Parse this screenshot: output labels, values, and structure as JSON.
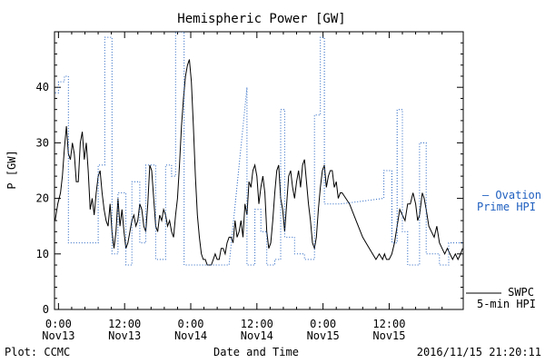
{
  "chart_data": {
    "type": "line",
    "title": "Hemispheric Power [GW]",
    "xlabel": "Date and Time",
    "ylabel": "P [GW]",
    "xlim": [
      -0.6,
      61.2
    ],
    "ylim": [
      0,
      50
    ],
    "yticks": [
      {
        "v": 0,
        "label": "0"
      },
      {
        "v": 10,
        "label": "10"
      },
      {
        "v": 20,
        "label": "20"
      },
      {
        "v": 30,
        "label": "30"
      },
      {
        "v": 40,
        "label": "40"
      }
    ],
    "xticks": [
      {
        "v": 0,
        "line1": "0:00",
        "line2": "Nov13"
      },
      {
        "v": 10,
        "line1": "12:00",
        "line2": "Nov13"
      },
      {
        "v": 20,
        "line1": "0:00",
        "line2": "Nov14"
      },
      {
        "v": 30,
        "line1": "12:00",
        "line2": "Nov14"
      },
      {
        "v": 40,
        "line1": "0:00",
        "line2": "Nov15"
      },
      {
        "v": 50,
        "line1": "12:00",
        "line2": "Nov15"
      }
    ],
    "series": [
      {
        "name": "SWPC 5-min HPI",
        "color": "#000000",
        "style": "solid",
        "points": [
          [
            -0.5,
            16
          ],
          [
            -0.1,
            19
          ],
          [
            0.3,
            21
          ],
          [
            0.6,
            24
          ],
          [
            0.9,
            29
          ],
          [
            1.2,
            33
          ],
          [
            1.5,
            28
          ],
          [
            1.8,
            27
          ],
          [
            2.1,
            30
          ],
          [
            2.4,
            28
          ],
          [
            2.7,
            23
          ],
          [
            3.0,
            23
          ],
          [
            3.3,
            30
          ],
          [
            3.6,
            32
          ],
          [
            3.9,
            27
          ],
          [
            4.2,
            30
          ],
          [
            4.5,
            25
          ],
          [
            4.8,
            18
          ],
          [
            5.1,
            20
          ],
          [
            5.4,
            17
          ],
          [
            5.7,
            21
          ],
          [
            6.0,
            24
          ],
          [
            6.3,
            25
          ],
          [
            6.6,
            21
          ],
          [
            6.9,
            18
          ],
          [
            7.2,
            16
          ],
          [
            7.5,
            15
          ],
          [
            7.8,
            19
          ],
          [
            8.1,
            14
          ],
          [
            8.4,
            11
          ],
          [
            8.7,
            14
          ],
          [
            9.0,
            20
          ],
          [
            9.3,
            15
          ],
          [
            9.6,
            18
          ],
          [
            9.9,
            14
          ],
          [
            10.2,
            11
          ],
          [
            10.5,
            12
          ],
          [
            10.8,
            14
          ],
          [
            11.1,
            16
          ],
          [
            11.4,
            17
          ],
          [
            11.7,
            15
          ],
          [
            12.0,
            16
          ],
          [
            12.3,
            19
          ],
          [
            12.6,
            18
          ],
          [
            12.9,
            15
          ],
          [
            13.2,
            14
          ],
          [
            13.5,
            19
          ],
          [
            13.8,
            26
          ],
          [
            14.1,
            25
          ],
          [
            14.4,
            20
          ],
          [
            14.7,
            15
          ],
          [
            15.0,
            14
          ],
          [
            15.3,
            17
          ],
          [
            15.6,
            16
          ],
          [
            15.9,
            18
          ],
          [
            16.2,
            17
          ],
          [
            16.5,
            15
          ],
          [
            16.8,
            16
          ],
          [
            17.1,
            14
          ],
          [
            17.4,
            13
          ],
          [
            17.7,
            17
          ],
          [
            18.0,
            20
          ],
          [
            18.3,
            26
          ],
          [
            18.6,
            33
          ],
          [
            18.9,
            38
          ],
          [
            19.2,
            42
          ],
          [
            19.5,
            44
          ],
          [
            19.8,
            45
          ],
          [
            20.1,
            41
          ],
          [
            20.4,
            33
          ],
          [
            20.7,
            24
          ],
          [
            21.0,
            17
          ],
          [
            21.3,
            13
          ],
          [
            21.6,
            10
          ],
          [
            21.9,
            9
          ],
          [
            22.2,
            9
          ],
          [
            22.5,
            8
          ],
          [
            22.8,
            8
          ],
          [
            23.1,
            8
          ],
          [
            23.4,
            9
          ],
          [
            23.7,
            10
          ],
          [
            24.0,
            9
          ],
          [
            24.3,
            9
          ],
          [
            24.6,
            11
          ],
          [
            24.9,
            11
          ],
          [
            25.2,
            10
          ],
          [
            25.5,
            12
          ],
          [
            25.8,
            13
          ],
          [
            26.1,
            13
          ],
          [
            26.4,
            12
          ],
          [
            26.7,
            16
          ],
          [
            27.0,
            13
          ],
          [
            27.3,
            14
          ],
          [
            27.6,
            16
          ],
          [
            27.9,
            13
          ],
          [
            28.2,
            19
          ],
          [
            28.5,
            17
          ],
          [
            28.8,
            23
          ],
          [
            29.1,
            22
          ],
          [
            29.4,
            25
          ],
          [
            29.7,
            26
          ],
          [
            30.0,
            24
          ],
          [
            30.3,
            19
          ],
          [
            30.6,
            22
          ],
          [
            30.9,
            24
          ],
          [
            31.2,
            21
          ],
          [
            31.5,
            14
          ],
          [
            31.8,
            11
          ],
          [
            32.1,
            12
          ],
          [
            32.4,
            16
          ],
          [
            32.7,
            21
          ],
          [
            33.0,
            25
          ],
          [
            33.3,
            26
          ],
          [
            33.6,
            20
          ],
          [
            33.9,
            18
          ],
          [
            34.2,
            14
          ],
          [
            34.5,
            19
          ],
          [
            34.8,
            24
          ],
          [
            35.1,
            25
          ],
          [
            35.4,
            22
          ],
          [
            35.7,
            20
          ],
          [
            36.0,
            23
          ],
          [
            36.3,
            25
          ],
          [
            36.6,
            22
          ],
          [
            36.9,
            26
          ],
          [
            37.2,
            27
          ],
          [
            37.5,
            23
          ],
          [
            37.8,
            19
          ],
          [
            38.1,
            16
          ],
          [
            38.4,
            12
          ],
          [
            38.7,
            11
          ],
          [
            39.0,
            13
          ],
          [
            39.3,
            18
          ],
          [
            39.6,
            22
          ],
          [
            39.9,
            25
          ],
          [
            40.2,
            26
          ],
          [
            40.5,
            22
          ],
          [
            40.8,
            24
          ],
          [
            41.1,
            25
          ],
          [
            41.4,
            25
          ],
          [
            41.7,
            22
          ],
          [
            42.0,
            23
          ],
          [
            42.3,
            20
          ],
          [
            42.6,
            21
          ],
          [
            42.9,
            21
          ],
          [
            44.0,
            19
          ],
          [
            45.0,
            16
          ],
          [
            46.0,
            13
          ],
          [
            47.0,
            11
          ],
          [
            47.5,
            10
          ],
          [
            48.0,
            9
          ],
          [
            48.5,
            10
          ],
          [
            49.0,
            9
          ],
          [
            49.3,
            10
          ],
          [
            49.6,
            9
          ],
          [
            50.0,
            9
          ],
          [
            50.4,
            10
          ],
          [
            50.8,
            12
          ],
          [
            51.2,
            15
          ],
          [
            51.6,
            18
          ],
          [
            52.0,
            17
          ],
          [
            52.4,
            16
          ],
          [
            52.8,
            19
          ],
          [
            53.2,
            19
          ],
          [
            53.6,
            21
          ],
          [
            54.0,
            19
          ],
          [
            54.3,
            16
          ],
          [
            54.6,
            17
          ],
          [
            55.0,
            21
          ],
          [
            55.3,
            20
          ],
          [
            55.6,
            18
          ],
          [
            56.0,
            15
          ],
          [
            56.4,
            14
          ],
          [
            56.8,
            13
          ],
          [
            57.2,
            15
          ],
          [
            57.6,
            12
          ],
          [
            58.0,
            11
          ],
          [
            58.4,
            10
          ],
          [
            58.8,
            11
          ],
          [
            59.2,
            10
          ],
          [
            59.6,
            9
          ],
          [
            60.0,
            10
          ],
          [
            60.4,
            9
          ],
          [
            60.8,
            10
          ],
          [
            61.1,
            11
          ]
        ]
      },
      {
        "name": "Ovation Prime HPI",
        "color": "#2060c0",
        "style": "dotted",
        "points": [
          [
            -0.5,
            39
          ],
          [
            0,
            39
          ],
          [
            0,
            41
          ],
          [
            0.9,
            41
          ],
          [
            0.9,
            42
          ],
          [
            1.5,
            42
          ],
          [
            1.5,
            12
          ],
          [
            6.0,
            12
          ],
          [
            6.0,
            26
          ],
          [
            7.0,
            26
          ],
          [
            7.0,
            49
          ],
          [
            8.1,
            49
          ],
          [
            8.1,
            10
          ],
          [
            9.0,
            10
          ],
          [
            9.0,
            21
          ],
          [
            10.2,
            21
          ],
          [
            10.2,
            8
          ],
          [
            11.1,
            8
          ],
          [
            11.1,
            23
          ],
          [
            12.3,
            23
          ],
          [
            12.3,
            12
          ],
          [
            13.2,
            12
          ],
          [
            13.2,
            26
          ],
          [
            14.7,
            26
          ],
          [
            14.7,
            9
          ],
          [
            16.2,
            9
          ],
          [
            16.2,
            26
          ],
          [
            17.1,
            26
          ],
          [
            17.1,
            24
          ],
          [
            17.7,
            24
          ],
          [
            17.7,
            50
          ],
          [
            19.0,
            50
          ],
          [
            19.0,
            8
          ],
          [
            25.8,
            8
          ],
          [
            28.5,
            40
          ],
          [
            28.5,
            8
          ],
          [
            29.7,
            8
          ],
          [
            29.7,
            18
          ],
          [
            30.6,
            18
          ],
          [
            30.6,
            14
          ],
          [
            31.5,
            14
          ],
          [
            31.5,
            8
          ],
          [
            32.7,
            8
          ],
          [
            32.7,
            9
          ],
          [
            33.6,
            9
          ],
          [
            33.6,
            36
          ],
          [
            34.2,
            36
          ],
          [
            34.2,
            13
          ],
          [
            35.7,
            13
          ],
          [
            35.7,
            10
          ],
          [
            37.2,
            10
          ],
          [
            37.2,
            9
          ],
          [
            38.7,
            9
          ],
          [
            38.7,
            35
          ],
          [
            39.6,
            35
          ],
          [
            39.6,
            49
          ],
          [
            40.2,
            49
          ],
          [
            40.2,
            19
          ],
          [
            42.6,
            19
          ],
          [
            49.2,
            20
          ],
          [
            49.2,
            25
          ],
          [
            50.4,
            25
          ],
          [
            50.4,
            12
          ],
          [
            51.2,
            12
          ],
          [
            51.2,
            36
          ],
          [
            52.0,
            36
          ],
          [
            52.0,
            14
          ],
          [
            52.8,
            14
          ],
          [
            52.8,
            8
          ],
          [
            54.6,
            8
          ],
          [
            54.6,
            30
          ],
          [
            55.6,
            30
          ],
          [
            55.6,
            10
          ],
          [
            57.6,
            10
          ],
          [
            57.6,
            8
          ],
          [
            59.0,
            8
          ],
          [
            59.0,
            12
          ],
          [
            61.1,
            12
          ]
        ]
      }
    ]
  },
  "footer": {
    "left": "Plot: CCMC",
    "right": "2016/11/15 21:20:11"
  },
  "legend": {
    "ovation_line1": "– Ovation",
    "ovation_line2": "Prime HPI",
    "swpc_line1": "SWPC",
    "swpc_line2": "5-min HPI"
  }
}
